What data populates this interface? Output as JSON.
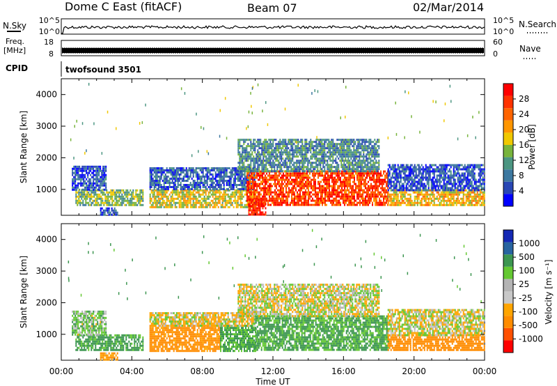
{
  "header": {
    "station": "Dome C East (fitACF)",
    "beam": "Beam 07",
    "date": "02/Mar/2014"
  },
  "summary": {
    "nsky_label": "N.Sky",
    "nsearch_label": "N.Search",
    "freq_label_1": "Freq.",
    "freq_label_2": "[MHz]",
    "nave_label": "Nave",
    "cpid_label": "CPID",
    "cpid_value": "twofsound 3501",
    "noise_ticks_left": [
      "10^5",
      "10^0"
    ],
    "noise_ticks_right": [
      "10^5",
      "10^0"
    ],
    "freq_ticks": [
      "18",
      "8"
    ],
    "nave_ticks": [
      "60",
      "0"
    ]
  },
  "colors": {
    "power_scale": [
      "#0000ff",
      "#2846b4",
      "#3c78a0",
      "#4c9682",
      "#78b43c",
      "#f0c800",
      "#ff9600",
      "#ff6400",
      "#ff3200",
      "#ff0000"
    ],
    "velocity_scale": [
      "#ff0000",
      "#ff5000",
      "#ff8c00",
      "#ffa500",
      "#c8c8c8",
      "#b4b4b4",
      "#64c832",
      "#3c9650",
      "#2864a0",
      "#1428b4"
    ]
  },
  "chart_data": [
    {
      "type": "heatmap",
      "title": "",
      "xlabel": "",
      "ylabel": "Slant Range [km]",
      "x_range": [
        "00:00",
        "24:00"
      ],
      "ylim": [
        180,
        4500
      ],
      "yticks": [
        1000,
        2000,
        3000,
        4000
      ],
      "colorbar_label": "Power [dB]",
      "colorbar_ticks": [
        4,
        8,
        12,
        16,
        20,
        24,
        28
      ],
      "clim": [
        0,
        30
      ],
      "bands": [
        {
          "t0": 0.8,
          "t1": 4.6,
          "r0": 500,
          "r1": 1000,
          "value": 13
        },
        {
          "t0": 0.6,
          "t1": 2.5,
          "r0": 1000,
          "r1": 1750,
          "value": 5
        },
        {
          "t0": 2.2,
          "t1": 3.2,
          "r0": 200,
          "r1": 430,
          "value": 6
        },
        {
          "t0": 5.0,
          "t1": 11.0,
          "r0": 450,
          "r1": 1000,
          "value": 16
        },
        {
          "t0": 5.0,
          "t1": 11.0,
          "r0": 1000,
          "r1": 1700,
          "value": 6
        },
        {
          "t0": 10.5,
          "t1": 18.5,
          "r0": 500,
          "r1": 1600,
          "value": 25
        },
        {
          "t0": 10.0,
          "t1": 18.0,
          "r0": 1600,
          "r1": 2600,
          "value": 9
        },
        {
          "t0": 10.6,
          "t1": 11.6,
          "r0": 200,
          "r1": 700,
          "value": 27
        },
        {
          "t0": 18.5,
          "t1": 24.0,
          "r0": 500,
          "r1": 1000,
          "value": 18
        },
        {
          "t0": 18.5,
          "t1": 24.0,
          "r0": 1000,
          "r1": 1800,
          "value": 5
        }
      ]
    },
    {
      "type": "heatmap",
      "title": "",
      "xlabel": "Time UT",
      "ylabel": "Slant Range [km]",
      "x_range": [
        "00:00",
        "24:00"
      ],
      "xticks": [
        "00:00",
        "04:00",
        "08:00",
        "12:00",
        "16:00",
        "20:00",
        "00:00"
      ],
      "ylim": [
        180,
        4500
      ],
      "yticks": [
        1000,
        2000,
        3000,
        4000
      ],
      "colorbar_label": "Velocity [m s⁻¹]",
      "colorbar_ticks": [
        1000,
        500,
        100,
        25,
        -25,
        -100,
        -500,
        -1000
      ],
      "bands": [
        {
          "t0": 0.8,
          "t1": 4.6,
          "r0": 500,
          "r1": 1000,
          "value": 150
        },
        {
          "t0": 0.6,
          "t1": 2.5,
          "r0": 1000,
          "r1": 1750,
          "value": 50
        },
        {
          "t0": 2.2,
          "t1": 3.2,
          "r0": 200,
          "r1": 430,
          "value": -100
        },
        {
          "t0": 5.0,
          "t1": 9.0,
          "r0": 450,
          "r1": 1300,
          "value": -150
        },
        {
          "t0": 9.0,
          "t1": 11.0,
          "r0": 450,
          "r1": 1300,
          "value": 120
        },
        {
          "t0": 5.0,
          "t1": 11.0,
          "r0": 1300,
          "r1": 1700,
          "value": -20
        },
        {
          "t0": 11.0,
          "t1": 18.5,
          "r0": 500,
          "r1": 1600,
          "value": 120
        },
        {
          "t0": 10.0,
          "t1": 18.0,
          "r0": 1600,
          "r1": 2600,
          "value": 0
        },
        {
          "t0": 18.5,
          "t1": 24.0,
          "r0": 500,
          "r1": 1000,
          "value": -180
        },
        {
          "t0": 18.5,
          "t1": 24.0,
          "r0": 1000,
          "r1": 1800,
          "value": 0
        }
      ]
    }
  ]
}
